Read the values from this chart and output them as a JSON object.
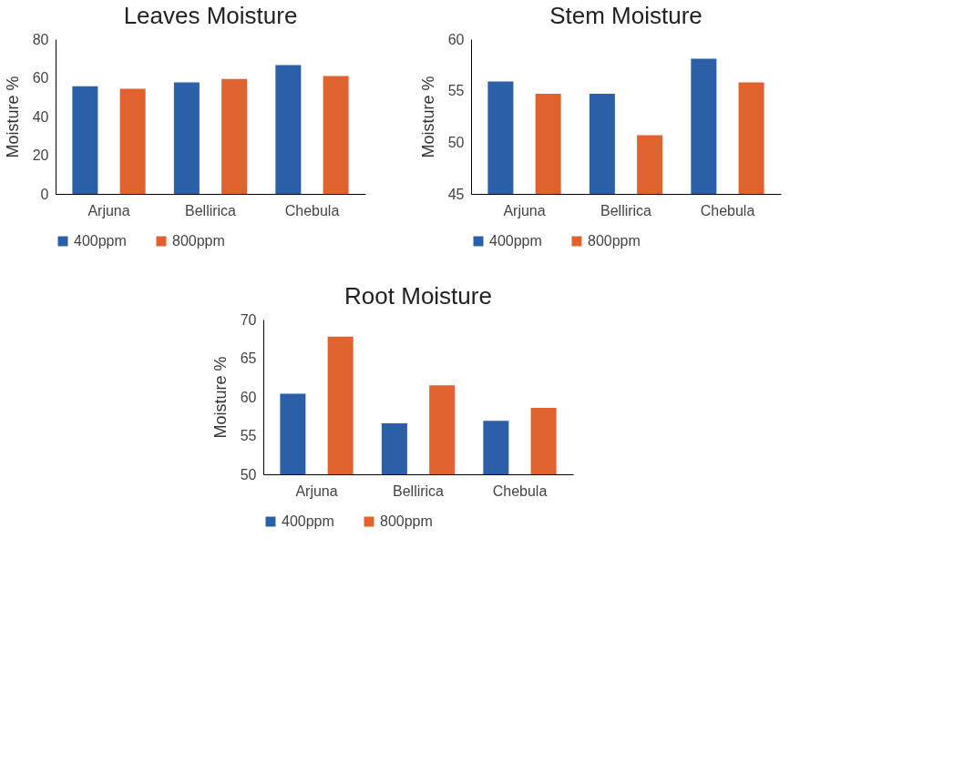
{
  "chart_data": [
    {
      "type": "bar",
      "title": "Leaves Moisture",
      "ylabel": "Moisture %",
      "categories": [
        "Arjuna",
        "Bellirica",
        "Chebula"
      ],
      "series": [
        {
          "name": "400ppm",
          "color": "#2b5fa8",
          "values": [
            55.6,
            57.6,
            66.6
          ]
        },
        {
          "name": "800ppm",
          "color": "#e0622f",
          "values": [
            54.4,
            59.4,
            61
          ]
        }
      ],
      "ylim": [
        0,
        80
      ],
      "yticks": [
        0,
        20,
        40,
        60,
        80
      ],
      "grid": false,
      "legend": "bottom"
    },
    {
      "type": "bar",
      "title": "Stem Moisture",
      "ylabel": "Moisture %",
      "categories": [
        "Arjuna",
        "Bellirica",
        "Chebula"
      ],
      "series": [
        {
          "name": "400ppm",
          "color": "#2b5fa8",
          "values": [
            55.9,
            54.7,
            58.1
          ]
        },
        {
          "name": "800ppm",
          "color": "#e0622f",
          "values": [
            54.7,
            50.7,
            55.8
          ]
        }
      ],
      "ylim": [
        45,
        60
      ],
      "yticks": [
        45,
        50,
        55,
        60
      ],
      "grid": false,
      "legend": "bottom"
    },
    {
      "type": "bar",
      "title": "Root Moisture",
      "ylabel": "Moisture %",
      "categories": [
        "Arjuna",
        "Bellirica",
        "Chebula"
      ],
      "series": [
        {
          "name": "400ppm",
          "color": "#2b5fa8",
          "values": [
            60.4,
            56.6,
            56.9
          ]
        },
        {
          "name": "800ppm",
          "color": "#e0622f",
          "values": [
            67.8,
            61.5,
            58.6
          ]
        }
      ],
      "ylim": [
        50,
        70
      ],
      "yticks": [
        50,
        55,
        60,
        65,
        70
      ],
      "grid": false,
      "legend": "bottom"
    }
  ]
}
